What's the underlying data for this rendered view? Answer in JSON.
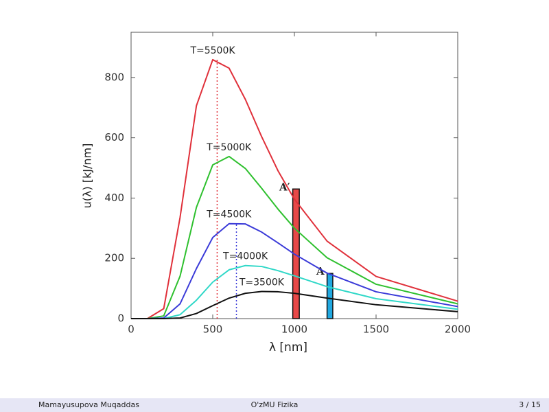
{
  "chart_data": {
    "type": "line",
    "x_label": "λ [nm]",
    "y_label": "u(λ) [kJ/nm]",
    "xlim": [
      0,
      2000
    ],
    "xticks": [
      0,
      500,
      1000,
      1500,
      2000
    ],
    "ylim": [
      0,
      950
    ],
    "yticks": [
      0,
      200,
      400,
      600,
      800
    ],
    "x": [
      0,
      100,
      200,
      300,
      400,
      500,
      600,
      700,
      800,
      900,
      1000,
      1200,
      1500,
      2000
    ],
    "series": [
      {
        "name": "T=5500K",
        "color": "#e0303a",
        "values": [
          0,
          0,
          33,
          336,
          706,
          859,
          831,
          727,
          603,
          490,
          396,
          257,
          140,
          58
        ]
      },
      {
        "name": "T=5000K",
        "color": "#2ec02e",
        "values": [
          0,
          0,
          9,
          141,
          369,
          510,
          538,
          498,
          432,
          363,
          300,
          202,
          114,
          49
        ]
      },
      {
        "name": "T=4500K",
        "color": "#3a3ad8",
        "values": [
          0,
          0,
          2,
          49,
          166,
          269,
          315,
          314,
          287,
          251,
          214,
          151,
          89,
          40
        ]
      },
      {
        "name": "T=4000K",
        "color": "#30d8c8",
        "values": [
          0,
          0,
          0,
          13,
          61,
          121,
          162,
          176,
          173,
          159,
          142,
          106,
          66,
          31
        ]
      },
      {
        "name": "T=3500K",
        "color": "#111111",
        "values": [
          0,
          0,
          0,
          2,
          17,
          43,
          68,
          84,
          90,
          89,
          84,
          68,
          46,
          23
        ]
      }
    ],
    "peak_lines": [
      {
        "x": 527,
        "top": 865,
        "color": "#e0303a"
      },
      {
        "x": 645,
        "top": 318,
        "color": "#3a3ad8"
      }
    ],
    "bars": [
      {
        "label": "A′",
        "x": [
          990,
          1030
        ],
        "value": 430,
        "color": "#e84848"
      },
      {
        "label": "A",
        "x": [
          1200,
          1235
        ],
        "value": 150,
        "color": "#20a8e0"
      }
    ]
  },
  "footer": {
    "author": "Mamayusupova Muqaddas",
    "center": "O'zMU Fizika",
    "page": "3 / 15"
  }
}
